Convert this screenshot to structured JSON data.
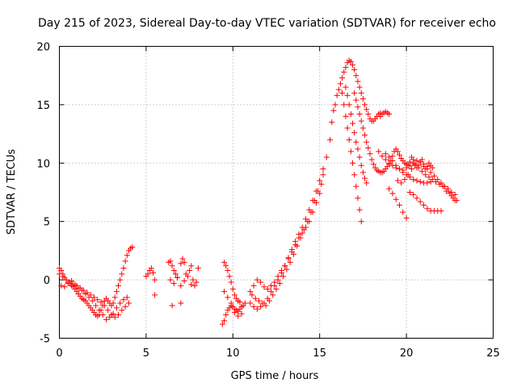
{
  "chart_data": {
    "type": "scatter",
    "title": "Day 215 of 2023, Sidereal Day-to-day VTEC variation (SDTVAR) for receiver echo",
    "xlabel": "GPS time / hours",
    "ylabel": "SDTVAR / TECUs",
    "xlim": [
      0,
      25
    ],
    "ylim": [
      -5,
      20
    ],
    "xticks": [
      0,
      5,
      10,
      15,
      20,
      25
    ],
    "yticks": [
      -5,
      0,
      5,
      10,
      15,
      20
    ],
    "xtick_labels": [
      "0",
      "5",
      "10",
      "15",
      "20",
      "25"
    ],
    "ytick_labels": [
      "-5",
      "0",
      "5",
      "10",
      "15",
      "20"
    ],
    "grid": true,
    "marker": "+",
    "color": "#ff0000",
    "series": [
      {
        "name": "SDTVAR",
        "x": [
          0.0,
          0.1,
          0.2,
          0.3,
          0.4,
          0.5,
          0.6,
          0.7,
          0.8,
          0.9,
          1.0,
          1.1,
          1.2,
          1.3,
          1.4,
          1.5,
          1.6,
          1.7,
          1.8,
          1.9,
          2.0,
          2.1,
          2.2,
          2.3,
          2.4,
          2.5,
          2.6,
          2.7,
          2.8,
          2.9,
          3.0,
          3.1,
          3.2,
          3.3,
          3.4,
          3.5,
          3.6,
          3.7,
          3.8,
          3.9,
          4.0,
          4.1,
          4.2,
          0.0,
          0.2,
          0.4,
          0.6,
          0.8,
          1.0,
          1.2,
          1.4,
          1.6,
          1.8,
          2.0,
          2.2,
          2.4,
          2.6,
          2.8,
          3.0,
          3.2,
          3.4,
          3.6,
          3.8,
          4.0,
          0.1,
          0.3,
          0.5,
          0.7,
          0.9,
          1.1,
          1.3,
          1.5,
          1.7,
          1.9,
          2.1,
          2.3,
          2.5,
          2.7,
          2.9,
          3.1,
          3.3,
          3.5,
          3.7,
          3.9,
          5.0,
          5.1,
          5.2,
          5.3,
          5.4,
          5.5,
          6.3,
          6.4,
          6.5,
          6.6,
          6.7,
          6.8,
          7.0,
          7.1,
          7.2,
          7.3,
          7.5,
          7.6,
          7.7,
          7.8,
          7.9,
          8.0,
          6.4,
          6.6,
          6.8,
          7.0,
          7.2,
          7.4,
          7.6,
          5.5,
          6.5,
          7.0,
          9.4,
          9.5,
          9.6,
          9.7,
          9.8,
          9.9,
          10.0,
          10.1,
          10.2,
          10.3,
          10.4,
          10.5,
          10.6,
          10.7,
          9.5,
          9.6,
          9.7,
          9.8,
          9.9,
          10.0,
          10.1,
          10.2,
          10.3,
          10.4,
          9.5,
          9.7,
          9.9,
          10.1,
          10.3,
          10.5,
          11.0,
          11.2,
          11.4,
          11.6,
          11.8,
          12.0,
          12.2,
          12.4,
          12.6,
          12.8,
          13.0,
          13.2,
          13.4,
          13.6,
          13.8,
          14.0,
          14.2,
          14.4,
          14.6,
          14.8,
          15.0,
          15.1,
          15.2,
          11.1,
          11.3,
          11.5,
          11.7,
          11.9,
          12.1,
          12.3,
          12.5,
          12.7,
          12.9,
          13.1,
          13.3,
          13.5,
          13.7,
          13.9,
          14.1,
          14.3,
          14.5,
          14.7,
          14.9,
          11.0,
          11.2,
          11.4,
          11.6,
          11.8,
          12.0,
          12.2,
          12.4,
          12.6,
          12.8,
          13.0,
          13.2,
          13.4,
          13.6,
          13.8,
          14.0,
          14.2,
          14.4,
          14.6,
          14.8,
          15.0,
          15.2,
          15.4,
          15.6,
          15.7,
          15.8,
          15.9,
          16.0,
          16.1,
          16.2,
          16.3,
          16.4,
          16.5,
          16.6,
          16.7,
          16.8,
          16.9,
          17.0,
          17.1,
          17.2,
          17.3,
          17.4,
          17.5,
          17.6,
          17.7,
          17.8,
          17.9,
          18.0,
          18.1,
          18.2,
          18.3,
          18.4,
          18.5,
          16.5,
          16.6,
          16.7,
          16.8,
          16.9,
          17.0,
          17.1,
          17.2,
          17.3,
          17.4,
          17.5,
          17.6,
          17.7,
          16.3,
          16.4,
          16.5,
          16.6,
          16.7,
          16.8,
          16.9,
          17.0,
          17.1,
          17.2,
          17.3,
          17.4,
          17.0,
          17.1,
          17.2,
          17.3,
          17.4,
          17.5,
          17.6,
          17.7,
          17.8,
          17.9,
          18.0,
          18.1,
          18.2,
          18.3,
          18.4,
          18.5,
          18.6,
          18.7,
          18.8,
          18.9,
          19.0,
          19.1,
          19.2,
          19.3,
          19.4,
          19.5,
          19.6,
          19.7,
          19.8,
          19.9,
          20.0,
          20.1,
          20.2,
          20.3,
          20.4,
          20.5,
          20.6,
          20.7,
          20.8,
          20.9,
          21.0,
          21.1,
          21.2,
          21.3,
          21.4,
          21.5,
          18.5,
          18.6,
          18.7,
          18.8,
          18.9,
          19.0,
          18.4,
          18.6,
          18.8,
          19.0,
          19.2,
          19.4,
          19.6,
          19.8,
          20.0,
          20.2,
          20.4,
          20.6,
          20.8,
          21.0,
          21.2,
          21.4,
          21.6,
          21.8,
          22.0,
          22.2,
          22.4,
          22.6,
          22.8,
          19.0,
          19.2,
          19.4,
          19.6,
          19.8,
          20.0,
          20.2,
          20.4,
          20.6,
          20.8,
          21.0,
          21.2,
          21.4,
          21.6,
          21.8,
          22.0,
          22.2,
          22.4,
          22.6,
          22.8,
          19.5,
          19.7,
          19.9,
          20.1,
          20.3,
          20.5,
          20.7,
          20.9,
          21.1,
          21.3,
          21.5,
          21.7,
          21.9,
          22.1,
          22.3,
          22.5,
          22.7,
          22.9,
          18.8,
          19.0,
          19.2,
          19.4,
          19.6,
          19.8,
          20.0,
          20.2,
          20.4,
          20.6,
          20.8,
          21.0,
          21.2,
          21.4
        ],
        "y": [
          1.0,
          0.8,
          0.5,
          0.2,
          0.0,
          -0.2,
          -0.3,
          -0.5,
          -0.6,
          -0.8,
          -1.0,
          -1.2,
          -1.4,
          -1.6,
          -1.7,
          -1.8,
          -2.0,
          -2.2,
          -2.4,
          -2.6,
          -2.8,
          -3.0,
          -3.1,
          -3.0,
          -2.6,
          -2.2,
          -1.8,
          -1.6,
          -1.8,
          -2.0,
          -2.2,
          -2.0,
          -1.5,
          -1.0,
          -0.5,
          0.0,
          0.5,
          1.0,
          1.6,
          2.1,
          2.5,
          2.7,
          2.8,
          0.5,
          0.3,
          0.0,
          -0.2,
          -0.4,
          -0.5,
          -0.7,
          -0.9,
          -1.1,
          -1.3,
          -1.5,
          -1.7,
          -1.9,
          -2.2,
          -2.6,
          -3.0,
          -3.2,
          -3.0,
          -2.6,
          -2.3,
          -2.0,
          -0.5,
          -0.6,
          -0.3,
          -0.1,
          -0.4,
          -0.7,
          -0.9,
          -1.2,
          -1.5,
          -1.8,
          -2.2,
          -2.6,
          -3.0,
          -3.4,
          -3.2,
          -2.9,
          -2.4,
          -2.0,
          -1.7,
          -1.5,
          0.3,
          0.5,
          0.8,
          1.0,
          0.6,
          0.0,
          1.5,
          1.6,
          1.2,
          0.8,
          0.5,
          0.2,
          1.4,
          1.8,
          1.5,
          0.5,
          0.8,
          1.2,
          0.0,
          -0.5,
          -0.2,
          1.0,
          0.0,
          -0.3,
          0.2,
          -0.5,
          -0.1,
          0.3,
          -0.4,
          -1.3,
          -2.2,
          -2.0,
          -3.8,
          -3.5,
          -3.0,
          -2.6,
          -2.4,
          -2.2,
          -2.3,
          -2.5,
          -2.6,
          -2.7,
          -2.5,
          -2.3,
          -2.2,
          -2.0,
          1.5,
          1.2,
          0.8,
          0.3,
          -0.2,
          -0.8,
          -1.3,
          -1.6,
          -1.8,
          -1.9,
          -1.0,
          -1.5,
          -2.0,
          -2.8,
          -3.1,
          -2.9,
          -1.0,
          -0.5,
          0.0,
          -0.2,
          -0.6,
          -0.8,
          -0.5,
          -0.2,
          0.3,
          0.8,
          1.2,
          1.8,
          2.4,
          3.0,
          3.6,
          4.0,
          4.5,
          5.0,
          5.8,
          6.6,
          7.4,
          8.2,
          9.0,
          -1.3,
          -1.6,
          -1.8,
          -2.0,
          -2.2,
          -1.8,
          -1.3,
          -0.8,
          -0.3,
          0.3,
          0.9,
          1.5,
          2.2,
          2.9,
          3.6,
          4.3,
          5.0,
          5.8,
          6.8,
          7.6,
          -2.0,
          -2.3,
          -2.5,
          -2.3,
          -2.0,
          -1.6,
          -1.0,
          -0.5,
          0.0,
          0.6,
          1.2,
          1.9,
          2.6,
          3.3,
          3.9,
          4.5,
          5.2,
          6.0,
          6.8,
          7.6,
          8.5,
          9.5,
          10.5,
          12.0,
          13.5,
          14.5,
          15.0,
          15.8,
          16.3,
          16.8,
          17.3,
          17.8,
          18.2,
          18.6,
          18.8,
          18.7,
          18.4,
          18.0,
          17.5,
          17.0,
          16.5,
          16.0,
          15.5,
          15.0,
          14.6,
          14.2,
          13.8,
          13.6,
          13.6,
          13.8,
          14.0,
          14.2,
          14.3,
          16.5,
          15.8,
          15.0,
          14.2,
          13.4,
          12.6,
          11.8,
          11.2,
          10.5,
          9.8,
          9.2,
          8.7,
          8.3,
          16.0,
          15.0,
          14.0,
          13.0,
          12.0,
          11.0,
          10.0,
          9.0,
          8.0,
          7.0,
          6.0,
          5.0,
          16.0,
          15.4,
          14.8,
          14.2,
          13.6,
          13.0,
          12.4,
          11.8,
          11.3,
          10.8,
          10.3,
          9.9,
          9.6,
          9.4,
          9.3,
          9.2,
          9.2,
          9.3,
          9.5,
          9.7,
          9.9,
          10.2,
          10.6,
          11.0,
          11.2,
          11.0,
          10.7,
          10.4,
          10.2,
          10.0,
          9.9,
          9.8,
          10.1,
          10.5,
          10.3,
          9.9,
          9.6,
          9.8,
          10.1,
          10.3,
          9.7,
          9.5,
          9.7,
          10.0,
          9.8,
          9.6,
          14.0,
          14.2,
          14.3,
          14.4,
          14.3,
          14.2,
          11.0,
          10.6,
          10.3,
          10.0,
          9.8,
          9.6,
          9.5,
          9.4,
          9.6,
          9.8,
          10.0,
          10.2,
          10.1,
          9.9,
          9.5,
          9.2,
          8.9,
          8.6,
          8.3,
          8.0,
          7.6,
          7.2,
          6.8,
          7.8,
          7.4,
          6.9,
          6.4,
          5.8,
          5.3,
          7.5,
          7.3,
          7.0,
          6.7,
          6.4,
          6.1,
          5.9,
          5.9,
          5.9,
          5.9,
          8.0,
          7.8,
          7.5,
          7.3,
          8.5,
          8.3,
          8.6,
          9.0,
          9.5,
          9.8,
          9.6,
          9.3,
          9.0,
          8.8,
          8.6,
          8.4,
          8.2,
          8.0,
          7.6,
          7.4,
          7.0,
          6.8,
          10.8,
          10.5,
          10.2,
          9.8,
          9.5,
          9.2,
          9.0,
          8.8,
          8.6,
          8.5,
          8.4,
          8.3,
          8.3,
          8.4
        ]
      }
    ]
  }
}
